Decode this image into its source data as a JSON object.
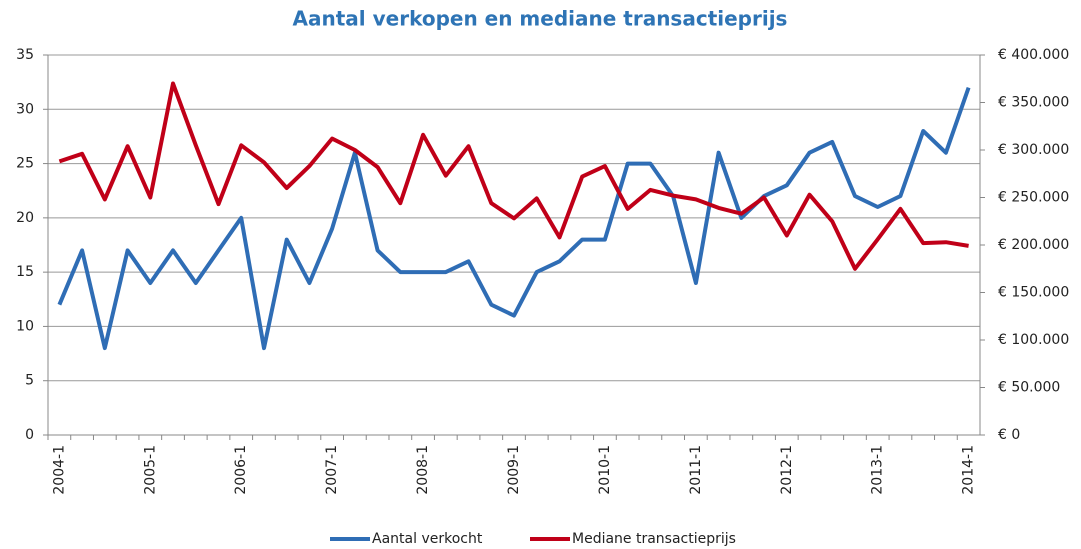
{
  "chart_data": {
    "type": "line",
    "title": "Aantal verkopen en mediane transactieprijs",
    "categories": [
      "2004-1",
      null,
      null,
      null,
      "2005-1",
      null,
      null,
      null,
      "2006-1",
      null,
      null,
      null,
      "2007-1",
      null,
      null,
      null,
      "2008-1",
      null,
      null,
      null,
      "2009-1",
      null,
      null,
      null,
      "2010-1",
      null,
      null,
      null,
      "2011-1",
      null,
      null,
      null,
      "2012-1",
      null,
      null,
      null,
      "2013-1",
      null,
      null,
      null,
      "2014-1"
    ],
    "series": [
      {
        "name": "Aantal verkocht",
        "color": "#2f6db5",
        "values": [
          12,
          17,
          8,
          17,
          14,
          17,
          14,
          17,
          20,
          8,
          18,
          14,
          19,
          26,
          17,
          15,
          15,
          15,
          16,
          12,
          11,
          15,
          16,
          18,
          18,
          25,
          25,
          22,
          14,
          26,
          20,
          22,
          23,
          26,
          27,
          22,
          21,
          22,
          28,
          26,
          32
        ]
      },
      {
        "name": "Mediane transactieprijs",
        "color": "#c00018",
        "axis": "y2",
        "values": [
          288000,
          296000,
          248000,
          304000,
          250000,
          370000,
          305000,
          243000,
          305000,
          287000,
          260000,
          283000,
          312000,
          300000,
          282000,
          244000,
          316000,
          273000,
          304000,
          244000,
          228000,
          249000,
          208000,
          272000,
          283000,
          238000,
          258000,
          252000,
          248000,
          239000,
          233000,
          250000,
          210000,
          253000,
          225000,
          175000,
          206000,
          238000,
          202000,
          203000,
          199000
        ]
      }
    ],
    "ylim": [
      0,
      35
    ],
    "yticks": [
      0,
      5,
      10,
      15,
      20,
      25,
      30,
      35
    ],
    "y2lim": [
      0,
      400000
    ],
    "y2ticks": [
      {
        "value": 0,
        "label": "€ 0"
      },
      {
        "value": 50000,
        "label": "€ 50.000"
      },
      {
        "value": 100000,
        "label": "€ 100.000"
      },
      {
        "value": 150000,
        "label": "€ 150.000"
      },
      {
        "value": 200000,
        "label": "€ 200.000"
      },
      {
        "value": 250000,
        "label": "€ 250.000"
      },
      {
        "value": 300000,
        "label": "€ 300.000"
      },
      {
        "value": 350000,
        "label": "€ 350.000"
      },
      {
        "value": 400000,
        "label": "€ 400.000"
      }
    ],
    "grid": true,
    "legend": "bottom"
  }
}
